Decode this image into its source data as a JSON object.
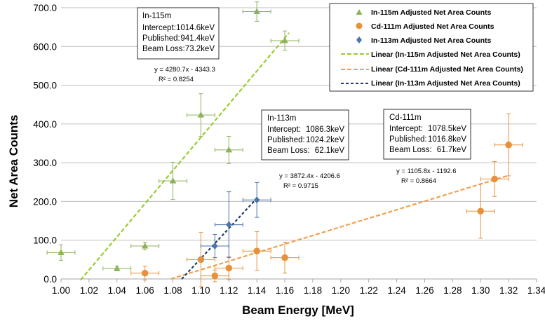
{
  "chart_data": {
    "type": "scatter",
    "xlabel": "Beam Energy [MeV]",
    "ylabel": "Net Area Counts",
    "xlim": [
      1.0,
      1.34
    ],
    "ylim": [
      0,
      700
    ],
    "x_ticks": [
      "1.00",
      "1.02",
      "1.04",
      "1.06",
      "1.08",
      "1.10",
      "1.12",
      "1.14",
      "1.16",
      "1.18",
      "1.20",
      "1.22",
      "1.24",
      "1.26",
      "1.28",
      "1.30",
      "1.32",
      "1.34"
    ],
    "y_ticks": [
      "0.0",
      "100.0",
      "200.0",
      "300.0",
      "400.0",
      "500.0",
      "600.0",
      "700.0"
    ],
    "grid": "horizontal",
    "legend_position": "top-right",
    "series": [
      {
        "name": "In-115m Adjusted Net Area Counts",
        "marker": "triangle",
        "color": "#8db35a",
        "points": [
          {
            "x": 1.0,
            "y": 68,
            "xerr": 0.01,
            "yerr": 20
          },
          {
            "x": 1.04,
            "y": 27,
            "xerr": 0.01,
            "yerr": 6
          },
          {
            "x": 1.06,
            "y": 85,
            "xerr": 0.01,
            "yerr": 10
          },
          {
            "x": 1.08,
            "y": 253,
            "xerr": 0.01,
            "yerr": 48
          },
          {
            "x": 1.1,
            "y": 423,
            "xerr": 0.01,
            "yerr": 55
          },
          {
            "x": 1.12,
            "y": 333,
            "xerr": 0.01,
            "yerr": 35
          },
          {
            "x": 1.14,
            "y": 690,
            "xerr": 0.01,
            "yerr": 25
          },
          {
            "x": 1.16,
            "y": 615,
            "xerr": 0.01,
            "yerr": 25
          }
        ]
      },
      {
        "name": "Cd-111m Adjusted Net Area Counts",
        "marker": "circle",
        "color": "#e8913a",
        "points": [
          {
            "x": 1.06,
            "y": 15,
            "xerr": 0.01,
            "yerr": 18
          },
          {
            "x": 1.1,
            "y": 50,
            "xerr": 0.01,
            "yerr": 70
          },
          {
            "x": 1.11,
            "y": 8,
            "xerr": 0.01,
            "yerr": 15
          },
          {
            "x": 1.12,
            "y": 28,
            "xerr": 0.01,
            "yerr": 30
          },
          {
            "x": 1.14,
            "y": 72,
            "xerr": 0.01,
            "yerr": 50
          },
          {
            "x": 1.16,
            "y": 55,
            "xerr": 0.01,
            "yerr": 40
          },
          {
            "x": 1.3,
            "y": 175,
            "xerr": 0.01,
            "yerr": 70
          },
          {
            "x": 1.31,
            "y": 258,
            "xerr": 0.01,
            "yerr": 45
          },
          {
            "x": 1.32,
            "y": 346,
            "xerr": 0.01,
            "yerr": 80
          }
        ]
      },
      {
        "name": "In-113m Adjusted Net Area Counts",
        "marker": "diamond",
        "color": "#4a74ad",
        "points": [
          {
            "x": 1.11,
            "y": 85,
            "xerr": 0.01,
            "yerr": 30
          },
          {
            "x": 1.12,
            "y": 140,
            "xerr": 0.01,
            "yerr": 85
          },
          {
            "x": 1.14,
            "y": 204,
            "xerr": 0.01,
            "yerr": 45
          }
        ]
      }
    ],
    "trendlines": [
      {
        "name": "Linear (In-115m Adjusted Net Area Counts)",
        "color": "#99cc33",
        "slope": 4280.7,
        "intercept": -4343.3,
        "x_range": [
          1.014,
          1.163
        ]
      },
      {
        "name": "Linear (Cd-111m Adjusted Net Area Counts)",
        "color": "#f0a050",
        "slope": 1105.8,
        "intercept": -1192.6,
        "x_range": [
          1.0785,
          1.32
        ]
      },
      {
        "name": "Linear (In-113m Adjusted Net Area Counts)",
        "color": "#1f3864",
        "slope": 3872.4,
        "intercept": -4206.6,
        "x_range": [
          1.0863,
          1.14
        ]
      }
    ],
    "annotations": {
      "in115_equation": "y = 4280.7x - 4343.3",
      "in115_r2": "R² = 0.8254",
      "in113_equation": "y = 3872.4x - 4206.6",
      "in113_r2": "R² = 0.9715",
      "cd111_equation": "y = 1105.8x - 1192.6",
      "cd111_r2": "R² = 0.8664"
    },
    "info_boxes": [
      {
        "lines": [
          {
            "label": "In-115m",
            "value": ""
          },
          {
            "label": "Intercept:",
            "value": "1014.6keV"
          },
          {
            "label": "Published:",
            "value": "941.4keV"
          },
          {
            "label": "Beam Loss:",
            "value": "73.2keV"
          }
        ]
      },
      {
        "lines": [
          {
            "label": "In-113m",
            "value": ""
          },
          {
            "label": "Intercept:",
            "value": "1086.3keV"
          },
          {
            "label": "Published:",
            "value": "1024.2keV"
          },
          {
            "label": "Beam Loss:",
            "value": "62.1keV"
          }
        ]
      },
      {
        "lines": [
          {
            "label": "Cd-111m",
            "value": ""
          },
          {
            "label": "Intercept:",
            "value": "1078.5keV"
          },
          {
            "label": "Published:",
            "value": "1016.8keV"
          },
          {
            "label": "Beam Loss:",
            "value": "61.7keV"
          }
        ]
      }
    ]
  }
}
